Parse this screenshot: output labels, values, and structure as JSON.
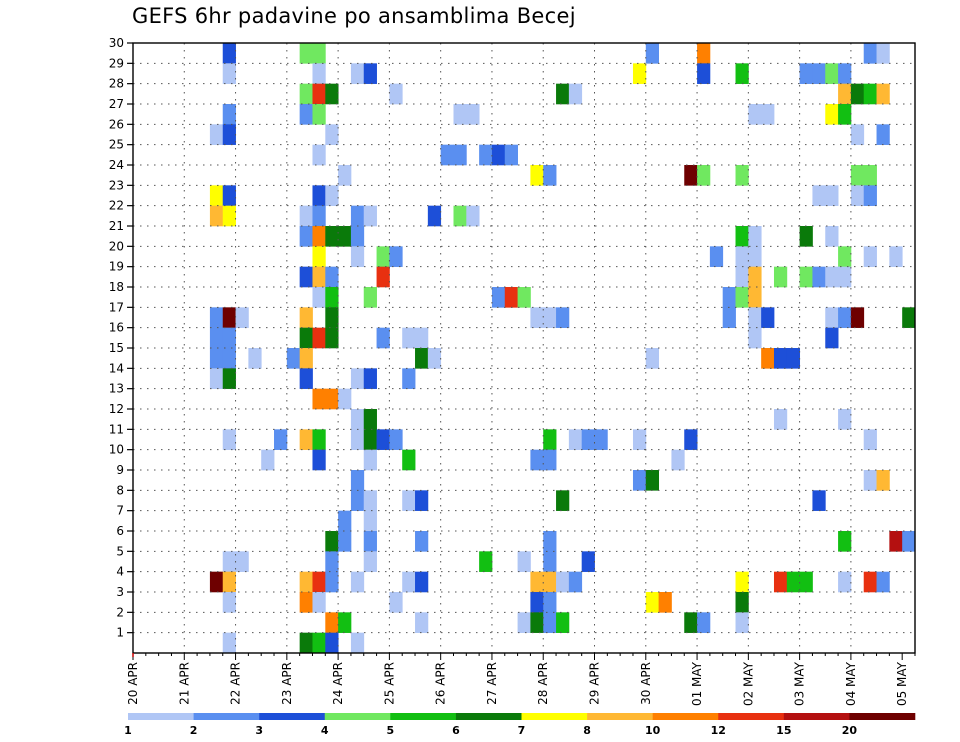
{
  "chart_data": {
    "type": "heatmap",
    "title": "GEFS 6hr padavine po ansamblima Becej",
    "xlabel": "",
    "ylabel": "",
    "x_unit": "6-hour steps from 20 APR 00Z",
    "x_range": [
      0,
      61
    ],
    "y_range": [
      0,
      30
    ],
    "x_tick_labels": [
      "20 APR",
      "21 APR",
      "22 APR",
      "23 APR",
      "24 APR",
      "25 APR",
      "26 APR",
      "27 APR",
      "28 APR",
      "29 APR",
      "30 APR",
      "01 MAY",
      "02 MAY",
      "03 MAY",
      "04 MAY",
      "05 MAY"
    ],
    "y_tick_labels": [
      "1",
      "2",
      "3",
      "4",
      "5",
      "6",
      "7",
      "8",
      "9",
      "10",
      "11",
      "12",
      "13",
      "14",
      "15",
      "16",
      "17",
      "18",
      "19",
      "20",
      "21",
      "22",
      "23",
      "24",
      "25",
      "26",
      "27",
      "28",
      "29",
      "30"
    ],
    "grid": true,
    "colorbar": {
      "placement": "bottom",
      "labels": [
        "1",
        "2",
        "3",
        "4",
        "5",
        "6",
        "7",
        "8",
        "10",
        "12",
        "15",
        "20"
      ],
      "colors": [
        "#b0c6f5",
        "#5a8ff0",
        "#1d4fd8",
        "#70e860",
        "#12bf12",
        "#0a7a0a",
        "#ffff00",
        "#ffb833",
        "#ff8000",
        "#e83010",
        "#b41010",
        "#6e0000"
      ]
    },
    "cells_format": "[time_index, ensemble_member, class_index] where class_index indexes colorbar.colors",
    "cells": [
      [
        7,
        30,
        2
      ],
      [
        13,
        30,
        3
      ],
      [
        14,
        30,
        3
      ],
      [
        40,
        30,
        1
      ],
      [
        44,
        30,
        8
      ],
      [
        57,
        30,
        1
      ],
      [
        58,
        30,
        0
      ],
      [
        7,
        29,
        0
      ],
      [
        14,
        29,
        0
      ],
      [
        17,
        29,
        0
      ],
      [
        18,
        29,
        2
      ],
      [
        39,
        29,
        6
      ],
      [
        44,
        29,
        2
      ],
      [
        47,
        29,
        4
      ],
      [
        52,
        29,
        1
      ],
      [
        53,
        29,
        1
      ],
      [
        54,
        29,
        3
      ],
      [
        55,
        29,
        1
      ],
      [
        13,
        28,
        3
      ],
      [
        14,
        28,
        9
      ],
      [
        15,
        28,
        5
      ],
      [
        20,
        28,
        0
      ],
      [
        33,
        28,
        5
      ],
      [
        34,
        28,
        0
      ],
      [
        55,
        28,
        7
      ],
      [
        56,
        28,
        5
      ],
      [
        57,
        28,
        4
      ],
      [
        58,
        28,
        7
      ],
      [
        7,
        27,
        1
      ],
      [
        13,
        27,
        1
      ],
      [
        14,
        27,
        3
      ],
      [
        25,
        27,
        0
      ],
      [
        26,
        27,
        0
      ],
      [
        48,
        27,
        0
      ],
      [
        49,
        27,
        0
      ],
      [
        54,
        27,
        6
      ],
      [
        55,
        27,
        4
      ],
      [
        6,
        26,
        0
      ],
      [
        7,
        26,
        2
      ],
      [
        15,
        26,
        0
      ],
      [
        56,
        26,
        0
      ],
      [
        58,
        26,
        1
      ],
      [
        14,
        25,
        0
      ],
      [
        24,
        25,
        1
      ],
      [
        25,
        25,
        1
      ],
      [
        27,
        25,
        1
      ],
      [
        28,
        25,
        2
      ],
      [
        29,
        25,
        1
      ],
      [
        16,
        24,
        0
      ],
      [
        31,
        24,
        6
      ],
      [
        32,
        24,
        1
      ],
      [
        43,
        24,
        11
      ],
      [
        44,
        24,
        3
      ],
      [
        47,
        24,
        3
      ],
      [
        56,
        24,
        3
      ],
      [
        57,
        24,
        3
      ],
      [
        6,
        23,
        6
      ],
      [
        7,
        23,
        2
      ],
      [
        14,
        23,
        2
      ],
      [
        15,
        23,
        0
      ],
      [
        53,
        23,
        0
      ],
      [
        54,
        23,
        0
      ],
      [
        56,
        23,
        0
      ],
      [
        57,
        23,
        1
      ],
      [
        6,
        22,
        7
      ],
      [
        7,
        22,
        6
      ],
      [
        13,
        22,
        0
      ],
      [
        14,
        22,
        1
      ],
      [
        17,
        22,
        1
      ],
      [
        18,
        22,
        0
      ],
      [
        23,
        22,
        2
      ],
      [
        25,
        22,
        3
      ],
      [
        26,
        22,
        0
      ],
      [
        13,
        21,
        1
      ],
      [
        14,
        21,
        8
      ],
      [
        15,
        21,
        5
      ],
      [
        16,
        21,
        5
      ],
      [
        17,
        21,
        1
      ],
      [
        47,
        21,
        4
      ],
      [
        48,
        21,
        0
      ],
      [
        52,
        21,
        5
      ],
      [
        54,
        21,
        0
      ],
      [
        14,
        20,
        6
      ],
      [
        17,
        20,
        0
      ],
      [
        19,
        20,
        3
      ],
      [
        20,
        20,
        1
      ],
      [
        45,
        20,
        1
      ],
      [
        47,
        20,
        0
      ],
      [
        48,
        20,
        0
      ],
      [
        55,
        20,
        3
      ],
      [
        57,
        20,
        0
      ],
      [
        59,
        20,
        0
      ],
      [
        13,
        19,
        2
      ],
      [
        14,
        19,
        7
      ],
      [
        15,
        19,
        1
      ],
      [
        19,
        19,
        9
      ],
      [
        47,
        19,
        0
      ],
      [
        48,
        19,
        7
      ],
      [
        50,
        19,
        3
      ],
      [
        52,
        19,
        3
      ],
      [
        53,
        19,
        1
      ],
      [
        54,
        19,
        0
      ],
      [
        55,
        19,
        0
      ],
      [
        14,
        18,
        0
      ],
      [
        15,
        18,
        4
      ],
      [
        18,
        18,
        3
      ],
      [
        28,
        18,
        1
      ],
      [
        29,
        18,
        9
      ],
      [
        30,
        18,
        3
      ],
      [
        46,
        18,
        1
      ],
      [
        47,
        18,
        3
      ],
      [
        48,
        18,
        7
      ],
      [
        6,
        17,
        1
      ],
      [
        7,
        17,
        11
      ],
      [
        8,
        17,
        0
      ],
      [
        13,
        17,
        7
      ],
      [
        15,
        17,
        5
      ],
      [
        31,
        17,
        0
      ],
      [
        32,
        17,
        0
      ],
      [
        33,
        17,
        1
      ],
      [
        46,
        17,
        1
      ],
      [
        48,
        17,
        0
      ],
      [
        49,
        17,
        2
      ],
      [
        54,
        17,
        0
      ],
      [
        55,
        17,
        1
      ],
      [
        56,
        17,
        11
      ],
      [
        60,
        17,
        5
      ],
      [
        6,
        16,
        1
      ],
      [
        7,
        16,
        1
      ],
      [
        13,
        16,
        5
      ],
      [
        14,
        16,
        9
      ],
      [
        15,
        16,
        5
      ],
      [
        19,
        16,
        1
      ],
      [
        21,
        16,
        0
      ],
      [
        22,
        16,
        0
      ],
      [
        48,
        16,
        0
      ],
      [
        54,
        16,
        2
      ],
      [
        6,
        15,
        1
      ],
      [
        7,
        15,
        1
      ],
      [
        9,
        15,
        0
      ],
      [
        12,
        15,
        1
      ],
      [
        13,
        15,
        7
      ],
      [
        22,
        15,
        5
      ],
      [
        23,
        15,
        0
      ],
      [
        40,
        15,
        0
      ],
      [
        49,
        15,
        8
      ],
      [
        50,
        15,
        2
      ],
      [
        51,
        15,
        2
      ],
      [
        6,
        14,
        0
      ],
      [
        7,
        14,
        5
      ],
      [
        13,
        14,
        2
      ],
      [
        17,
        14,
        0
      ],
      [
        18,
        14,
        2
      ],
      [
        21,
        14,
        1
      ],
      [
        14,
        13,
        8
      ],
      [
        15,
        13,
        8
      ],
      [
        16,
        13,
        0
      ],
      [
        17,
        12,
        0
      ],
      [
        18,
        12,
        5
      ],
      [
        50,
        12,
        0
      ],
      [
        55,
        12,
        0
      ],
      [
        7,
        11,
        0
      ],
      [
        11,
        11,
        1
      ],
      [
        13,
        11,
        7
      ],
      [
        14,
        11,
        4
      ],
      [
        17,
        11,
        0
      ],
      [
        18,
        11,
        5
      ],
      [
        19,
        11,
        2
      ],
      [
        20,
        11,
        1
      ],
      [
        32,
        11,
        4
      ],
      [
        34,
        11,
        0
      ],
      [
        35,
        11,
        1
      ],
      [
        36,
        11,
        1
      ],
      [
        39,
        11,
        0
      ],
      [
        43,
        11,
        2
      ],
      [
        57,
        11,
        0
      ],
      [
        10,
        10,
        0
      ],
      [
        14,
        10,
        2
      ],
      [
        18,
        10,
        0
      ],
      [
        21,
        10,
        4
      ],
      [
        31,
        10,
        1
      ],
      [
        32,
        10,
        1
      ],
      [
        42,
        10,
        0
      ],
      [
        17,
        9,
        1
      ],
      [
        39,
        9,
        1
      ],
      [
        40,
        9,
        5
      ],
      [
        57,
        9,
        0
      ],
      [
        58,
        9,
        7
      ],
      [
        17,
        8,
        1
      ],
      [
        18,
        8,
        0
      ],
      [
        21,
        8,
        0
      ],
      [
        22,
        8,
        2
      ],
      [
        33,
        8,
        5
      ],
      [
        53,
        8,
        2
      ],
      [
        16,
        7,
        1
      ],
      [
        18,
        7,
        0
      ],
      [
        15,
        6,
        5
      ],
      [
        16,
        6,
        1
      ],
      [
        18,
        6,
        1
      ],
      [
        22,
        6,
        1
      ],
      [
        32,
        6,
        1
      ],
      [
        55,
        6,
        4
      ],
      [
        59,
        6,
        10
      ],
      [
        60,
        6,
        1
      ],
      [
        7,
        5,
        0
      ],
      [
        8,
        5,
        0
      ],
      [
        15,
        5,
        1
      ],
      [
        18,
        5,
        0
      ],
      [
        27,
        5,
        4
      ],
      [
        30,
        5,
        0
      ],
      [
        32,
        5,
        1
      ],
      [
        35,
        5,
        2
      ],
      [
        6,
        4,
        11
      ],
      [
        7,
        4,
        7
      ],
      [
        13,
        4,
        7
      ],
      [
        14,
        4,
        9
      ],
      [
        15,
        4,
        1
      ],
      [
        17,
        4,
        0
      ],
      [
        21,
        4,
        0
      ],
      [
        22,
        4,
        2
      ],
      [
        31,
        4,
        7
      ],
      [
        32,
        4,
        7
      ],
      [
        33,
        4,
        0
      ],
      [
        34,
        4,
        1
      ],
      [
        47,
        4,
        6
      ],
      [
        50,
        4,
        9
      ],
      [
        51,
        4,
        4
      ],
      [
        52,
        4,
        4
      ],
      [
        55,
        4,
        0
      ],
      [
        57,
        4,
        9
      ],
      [
        58,
        4,
        1
      ],
      [
        7,
        3,
        0
      ],
      [
        13,
        3,
        8
      ],
      [
        14,
        3,
        0
      ],
      [
        20,
        3,
        0
      ],
      [
        31,
        3,
        2
      ],
      [
        32,
        3,
        1
      ],
      [
        40,
        3,
        6
      ],
      [
        41,
        3,
        8
      ],
      [
        47,
        3,
        5
      ],
      [
        15,
        2,
        8
      ],
      [
        16,
        2,
        4
      ],
      [
        22,
        2,
        0
      ],
      [
        30,
        2,
        0
      ],
      [
        31,
        2,
        5
      ],
      [
        32,
        2,
        1
      ],
      [
        33,
        2,
        4
      ],
      [
        43,
        2,
        5
      ],
      [
        44,
        2,
        1
      ],
      [
        47,
        2,
        0
      ],
      [
        7,
        1,
        0
      ],
      [
        13,
        1,
        5
      ],
      [
        14,
        1,
        4
      ],
      [
        15,
        1,
        2
      ],
      [
        17,
        1,
        0
      ]
    ]
  }
}
